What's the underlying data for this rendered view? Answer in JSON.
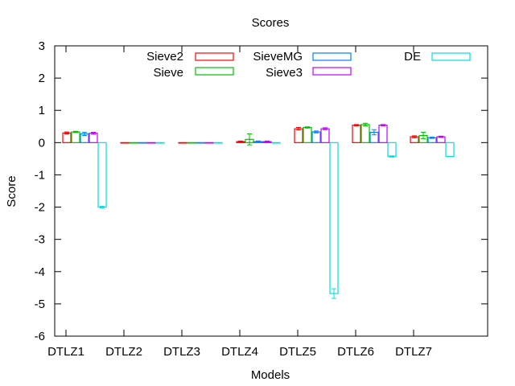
{
  "chart_data": {
    "type": "bar",
    "title": "Scores",
    "xlabel": "Models",
    "ylabel": "Score",
    "ylim": [
      -6,
      3
    ],
    "yticks": [
      3,
      2,
      1,
      0,
      -1,
      -2,
      -3,
      -4,
      -5,
      -6
    ],
    "categories": [
      "DTLZ1",
      "DTLZ2",
      "DTLZ3",
      "DTLZ4",
      "DTLZ5",
      "DTLZ6",
      "DTLZ7"
    ],
    "grid": false,
    "legend_position": "top",
    "series": [
      {
        "name": "Sieve2",
        "color": "#ff0000",
        "values": [
          0.3,
          0.0,
          0.0,
          0.03,
          0.43,
          0.54,
          0.18
        ],
        "errors": [
          0.03,
          0.0,
          0.0,
          0.02,
          0.04,
          0.02,
          0.03
        ]
      },
      {
        "name": "Sieve",
        "color": "#00c000",
        "values": [
          0.33,
          0.0,
          0.0,
          0.1,
          0.47,
          0.56,
          0.22
        ],
        "errors": [
          0.02,
          0.0,
          0.0,
          0.17,
          0.02,
          0.04,
          0.1
        ]
      },
      {
        "name": "SieveMG",
        "color": "#0080ff",
        "values": [
          0.27,
          0.0,
          0.0,
          0.03,
          0.33,
          0.32,
          0.15
        ],
        "errors": [
          0.05,
          0.0,
          0.0,
          0.02,
          0.03,
          0.08,
          0.02
        ]
      },
      {
        "name": "Sieve3",
        "color": "#c000ff",
        "values": [
          0.29,
          0.0,
          0.0,
          0.03,
          0.43,
          0.54,
          0.18
        ],
        "errors": [
          0.03,
          0.0,
          0.0,
          0.02,
          0.03,
          0.02,
          0.02
        ]
      },
      {
        "name": "DE",
        "color": "#00e0e0",
        "values": [
          -2.0,
          0.0,
          0.0,
          0.0,
          -4.68,
          -0.43,
          -0.43
        ],
        "errors": [
          0.03,
          0.0,
          0.0,
          0.0,
          0.15,
          0.02,
          0.0
        ]
      }
    ]
  }
}
